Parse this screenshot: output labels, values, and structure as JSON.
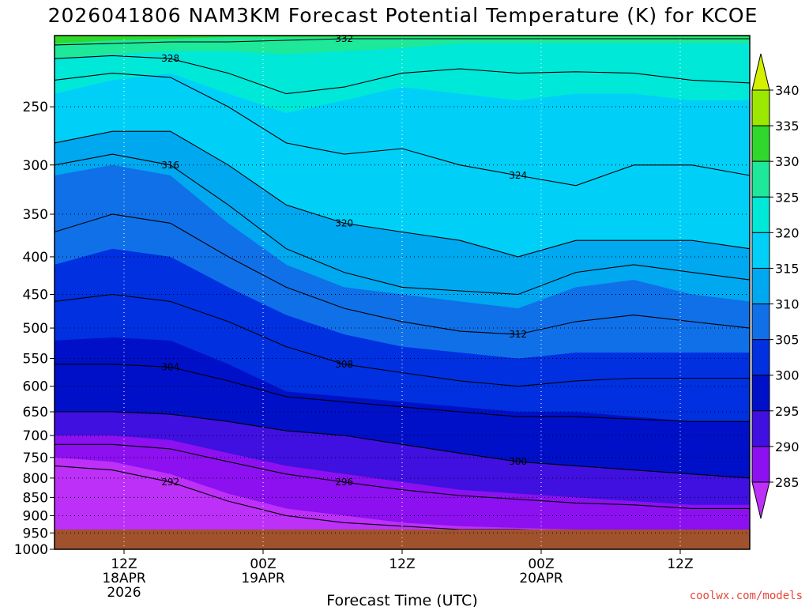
{
  "chart_data": {
    "type": "contour",
    "title": "2026041806 NAM3KM Forecast Potential Temperature (K) for KCOE",
    "xlabel": "Forecast Time (UTC)",
    "credit": "coolwx.com/models",
    "y_axis": {
      "quantity": "pressure (hPa)",
      "range": [
        1000,
        200
      ],
      "ticks": [
        "250",
        "300",
        "350",
        "400",
        "450",
        "500",
        "550",
        "600",
        "650",
        "700",
        "750",
        "800",
        "850",
        "900",
        "950",
        "1000"
      ]
    },
    "x_axis": {
      "range_hours": [
        0,
        60
      ],
      "ticks": [
        {
          "hour": 6,
          "line1": "12Z",
          "line2": "18APR",
          "line3": "2026"
        },
        {
          "hour": 18,
          "line1": "00Z",
          "line2": "19APR",
          "line3": ""
        },
        {
          "hour": 30,
          "line1": "12Z",
          "line2": "",
          "line3": ""
        },
        {
          "hour": 42,
          "line1": "00Z",
          "line2": "20APR",
          "line3": ""
        },
        {
          "hour": 54,
          "line1": "12Z",
          "line2": "",
          "line3": ""
        }
      ]
    },
    "colorbar": {
      "levels": [
        "340",
        "335",
        "330",
        "325",
        "320",
        "315",
        "310",
        "305",
        "300",
        "295",
        "290",
        "285"
      ],
      "colors": [
        "#d4f000",
        "#9ce800",
        "#2fd82a",
        "#1ee89a",
        "#00e8d8",
        "#00d0f8",
        "#00a8f0",
        "#1070e8",
        "#0030e0",
        "#0010c8",
        "#4010e0",
        "#8c10f0",
        "#bc30f8"
      ]
    },
    "fill_bands": {
      "hours": [
        0,
        5,
        10,
        15,
        20,
        25,
        30,
        35,
        40,
        45,
        50,
        55,
        60
      ],
      "isentropes": [
        {
          "theta": 290,
          "p": [
            750,
            760,
            790,
            840,
            880,
            900,
            920,
            930,
            935,
            940,
            940,
            940,
            940
          ]
        },
        {
          "theta": 295,
          "p": [
            700,
            700,
            710,
            740,
            770,
            790,
            810,
            830,
            840,
            850,
            860,
            870,
            870
          ]
        },
        {
          "theta": 300,
          "p": [
            650,
            650,
            655,
            670,
            690,
            700,
            720,
            740,
            760,
            770,
            780,
            790,
            800
          ]
        },
        {
          "theta": 305,
          "p": [
            520,
            515,
            520,
            560,
            610,
            620,
            630,
            640,
            650,
            650,
            660,
            670,
            670
          ]
        },
        {
          "theta": 310,
          "p": [
            410,
            390,
            400,
            440,
            480,
            510,
            530,
            540,
            550,
            540,
            540,
            540,
            540
          ]
        },
        {
          "theta": 315,
          "p": [
            310,
            300,
            310,
            360,
            410,
            440,
            450,
            460,
            470,
            440,
            430,
            450,
            460
          ]
        },
        {
          "theta": 320,
          "p": [
            280,
            270,
            270,
            300,
            340,
            360,
            370,
            380,
            400,
            380,
            380,
            380,
            390
          ]
        },
        {
          "theta": 325,
          "p": [
            240,
            230,
            225,
            240,
            255,
            245,
            235,
            240,
            245,
            240,
            240,
            245,
            245
          ]
        },
        {
          "theta": 330,
          "p": [
            215,
            212,
            210,
            210,
            212,
            210,
            208,
            205,
            205,
            205,
            205,
            205,
            205
          ]
        },
        {
          "theta": 335,
          "p": [
            205,
            203,
            202,
            201,
            201,
            201,
            201,
            201,
            201,
            201,
            201,
            201,
            201
          ]
        }
      ]
    },
    "contours": [
      {
        "label": "292",
        "theta": 292,
        "p": [
          770,
          780,
          810,
          860,
          900,
          920,
          930,
          940,
          940,
          945,
          945,
          945,
          945
        ]
      },
      {
        "label": "296",
        "theta": 296,
        "p": [
          720,
          720,
          730,
          760,
          790,
          810,
          830,
          845,
          855,
          865,
          870,
          880,
          880
        ]
      },
      {
        "label": "300",
        "theta": 300,
        "p": [
          650,
          650,
          655,
          670,
          690,
          700,
          720,
          740,
          760,
          770,
          780,
          790,
          800
        ]
      },
      {
        "label": "304",
        "theta": 304,
        "p": [
          560,
          560,
          565,
          590,
          620,
          630,
          640,
          650,
          660,
          660,
          665,
          670,
          670
        ]
      },
      {
        "label": "308",
        "theta": 308,
        "p": [
          460,
          450,
          460,
          490,
          530,
          560,
          575,
          590,
          600,
          590,
          585,
          585,
          585
        ]
      },
      {
        "label": "312",
        "theta": 312,
        "p": [
          370,
          350,
          360,
          400,
          440,
          470,
          490,
          505,
          510,
          490,
          480,
          490,
          500
        ]
      },
      {
        "label": "316",
        "theta": 316,
        "p": [
          300,
          290,
          300,
          340,
          390,
          420,
          440,
          445,
          450,
          420,
          410,
          420,
          430
        ]
      },
      {
        "label": "320",
        "theta": 320,
        "p": [
          280,
          270,
          270,
          300,
          340,
          360,
          370,
          380,
          400,
          380,
          380,
          380,
          390
        ]
      },
      {
        "label": "324",
        "theta": 324,
        "p": [
          230,
          225,
          228,
          250,
          280,
          290,
          285,
          300,
          310,
          320,
          300,
          300,
          310
        ]
      },
      {
        "label": "328",
        "theta": 328,
        "p": [
          215,
          213,
          215,
          225,
          240,
          235,
          225,
          222,
          225,
          224,
          225,
          230,
          232
        ]
      },
      {
        "label": "332",
        "theta": 332,
        "p": [
          206,
          205,
          204,
          204,
          203,
          202,
          202,
          202,
          202,
          202,
          202,
          202,
          202
        ]
      }
    ],
    "terrain": {
      "top_pressure": 940,
      "color": "#a0522d"
    }
  }
}
